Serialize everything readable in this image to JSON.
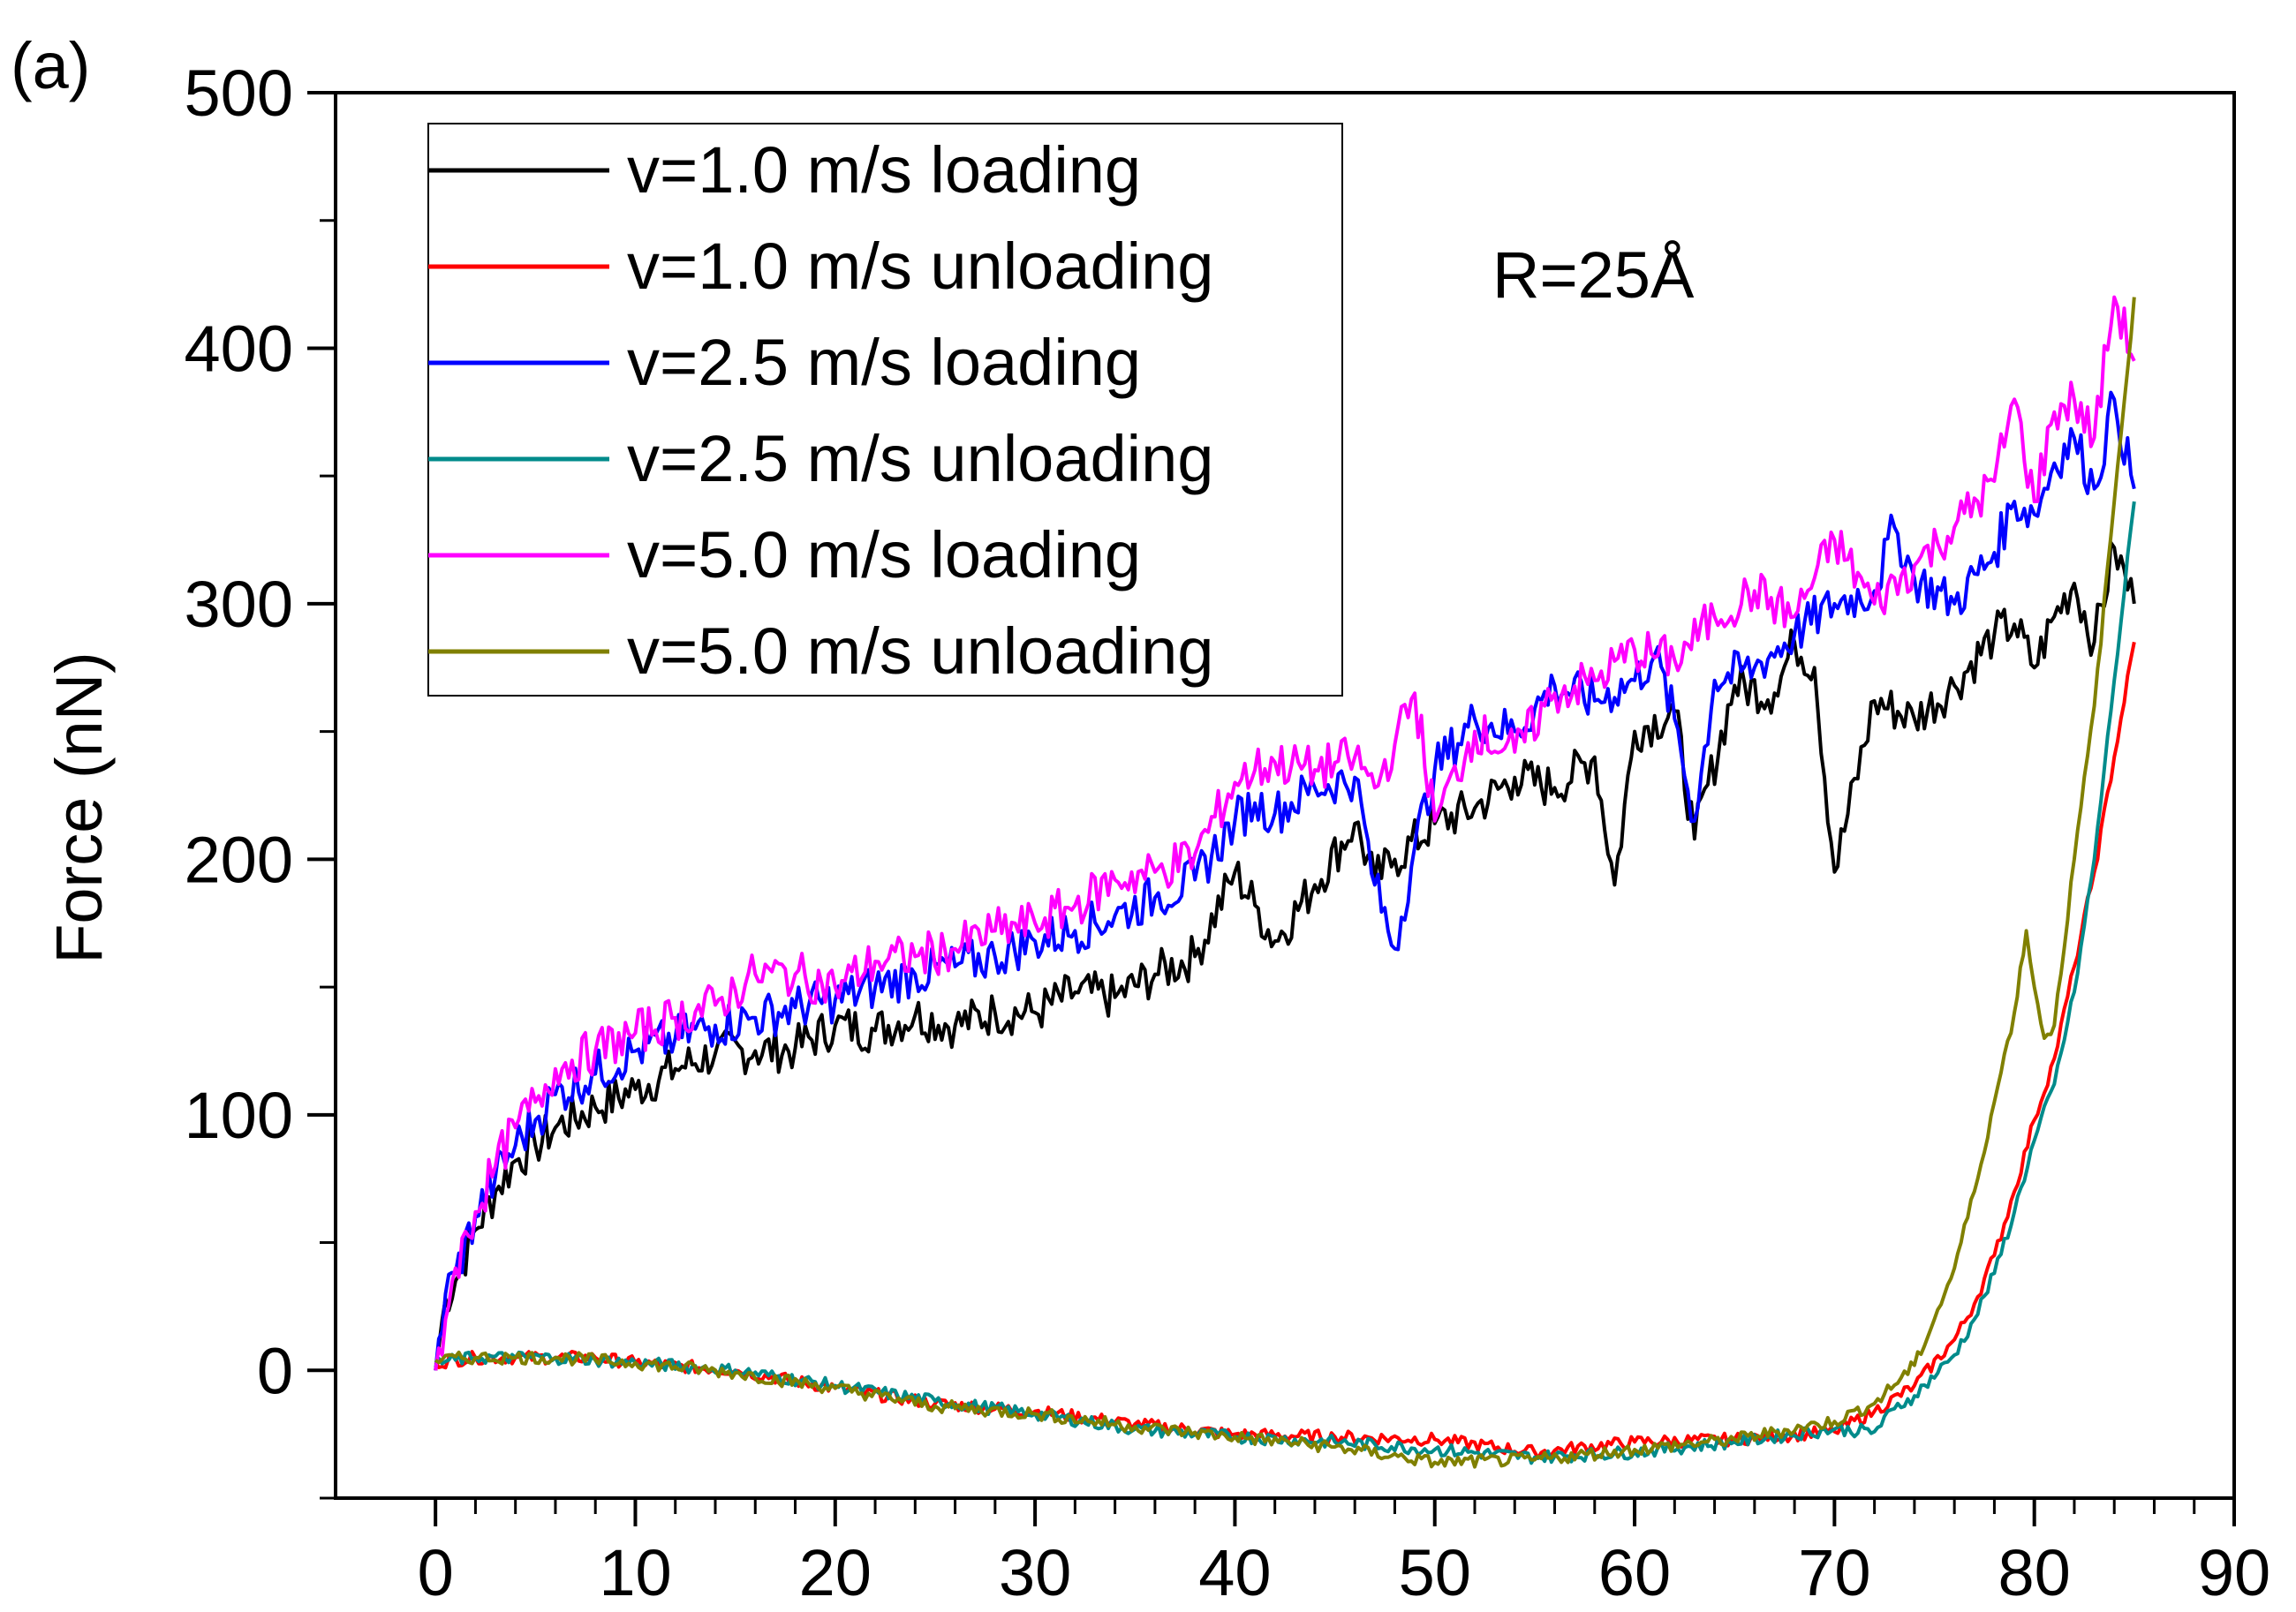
{
  "chart_data": {
    "type": "line",
    "panel_label": "(a)",
    "ylabel": "Force (nN)",
    "xlabel": "",
    "xlim": [
      -5,
      90
    ],
    "ylim": [
      -50,
      500
    ],
    "x_ticks": [
      0,
      10,
      20,
      30,
      40,
      50,
      60,
      70,
      80,
      90
    ],
    "x_tick_labels": [
      "0",
      "10",
      "20",
      "30",
      "40",
      "50",
      "60",
      "70",
      "80",
      "90"
    ],
    "y_ticks": [
      0,
      100,
      200,
      300,
      400,
      500
    ],
    "y_tick_labels": [
      "0",
      "100",
      "200",
      "300",
      "400",
      "500"
    ],
    "annotation": "R=25Å",
    "legend_position": "top-left",
    "series": [
      {
        "name": "v=1.0 m/s loading",
        "color": "#000000",
        "x": [
          0,
          0.5,
          1,
          2,
          3,
          4,
          5,
          6,
          8,
          10,
          12,
          14,
          16,
          18,
          20,
          22,
          24,
          26,
          28,
          30,
          32,
          34,
          36,
          38,
          40,
          41,
          42,
          44,
          46,
          47,
          48,
          50,
          52,
          54,
          56,
          58,
          59,
          60,
          62,
          63,
          65,
          67,
          68,
          69,
          70,
          72,
          74,
          76,
          78,
          79,
          80,
          81,
          82,
          83,
          84,
          85
        ],
        "y": [
          0,
          28,
          35,
          55,
          70,
          82,
          88,
          95,
          103,
          110,
          118,
          124,
          125,
          126,
          135,
          133,
          139,
          135,
          140,
          140,
          148,
          146,
          155,
          162,
          195,
          182,
          168,
          190,
          214,
          192,
          200,
          214,
          220,
          232,
          228,
          240,
          190,
          250,
          258,
          208,
          268,
          265,
          285,
          275,
          195,
          262,
          255,
          268,
          288,
          292,
          275,
          295,
          308,
          285,
          322,
          300
        ]
      },
      {
        "name": "v=1.0 m/s unloading",
        "color": "#ff0000",
        "x": [
          0,
          2,
          4,
          6,
          8,
          10,
          15,
          20,
          25,
          30,
          35,
          40,
          45,
          50,
          55,
          60,
          65,
          70,
          72,
          74,
          76,
          77,
          78,
          79,
          80,
          81,
          82,
          83,
          84,
          85
        ],
        "y": [
          3,
          5,
          5,
          5,
          5,
          3,
          0,
          -7,
          -13,
          -16,
          -21,
          -25,
          -26,
          -27,
          -32,
          -28,
          -27,
          -24,
          -16,
          -6,
          12,
          26,
          45,
          70,
          98,
          122,
          158,
          195,
          240,
          285
        ]
      },
      {
        "name": "v=2.5 m/s loading",
        "color": "#0000ff",
        "x": [
          0,
          0.5,
          1,
          2,
          3,
          4,
          5,
          6,
          8,
          10,
          12,
          14,
          16,
          18,
          20,
          22,
          24,
          26,
          28,
          30,
          32,
          34,
          36,
          38,
          40,
          41,
          42,
          44,
          46,
          47,
          48,
          49,
          50,
          52,
          54,
          56,
          58,
          60,
          61,
          62,
          63,
          64,
          66,
          68,
          70,
          72,
          73,
          74,
          76,
          78,
          79,
          80,
          81,
          82,
          83,
          84,
          85
        ],
        "y": [
          0,
          30,
          38,
          60,
          76,
          88,
          98,
          108,
          116,
          125,
          130,
          135,
          138,
          142,
          145,
          150,
          155,
          158,
          162,
          168,
          172,
          178,
          185,
          192,
          215,
          222,
          218,
          228,
          232,
          190,
          165,
          205,
          235,
          255,
          250,
          268,
          262,
          270,
          280,
          255,
          215,
          270,
          275,
          288,
          300,
          305,
          330,
          310,
          300,
          320,
          340,
          335,
          355,
          365,
          345,
          380,
          345
        ]
      },
      {
        "name": "v=2.5 m/s unloading",
        "color": "#008b8b",
        "x": [
          0,
          2,
          4,
          6,
          8,
          10,
          15,
          20,
          25,
          30,
          35,
          40,
          45,
          50,
          55,
          60,
          65,
          70,
          72,
          73,
          74,
          76,
          77,
          78,
          79,
          80,
          81,
          82,
          83,
          84,
          85
        ],
        "y": [
          3,
          5,
          5,
          5,
          4,
          3,
          0,
          -6,
          -12,
          -17,
          -23,
          -26,
          -28,
          -31,
          -34,
          -32,
          -28,
          -23,
          -24,
          -15,
          -10,
          6,
          20,
          38,
          62,
          90,
          112,
          148,
          200,
          270,
          340
        ]
      },
      {
        "name": "v=5.0 m/s loading",
        "color": "#ff00ff",
        "x": [
          0,
          0.5,
          1,
          2,
          3,
          4,
          5,
          6,
          8,
          10,
          12,
          14,
          16,
          18,
          20,
          22,
          24,
          26,
          28,
          30,
          32,
          34,
          36,
          38,
          40,
          41,
          42,
          44,
          46,
          47,
          48,
          49,
          50,
          52,
          54,
          56,
          58,
          60,
          62,
          64,
          66,
          68,
          70,
          72,
          74,
          76,
          78,
          79,
          80,
          81,
          82,
          83,
          84,
          85
        ],
        "y": [
          0,
          20,
          40,
          62,
          80,
          95,
          105,
          118,
          125,
          132,
          138,
          143,
          155,
          155,
          150,
          160,
          162,
          165,
          172,
          175,
          182,
          192,
          195,
          202,
          230,
          235,
          238,
          235,
          240,
          228,
          245,
          265,
          215,
          250,
          242,
          265,
          270,
          282,
          278,
          295,
          305,
          295,
          325,
          300,
          315,
          330,
          348,
          380,
          340,
          375,
          380,
          365,
          420,
          395
        ]
      },
      {
        "name": "v=5.0 m/s unloading",
        "color": "#808000",
        "x": [
          0,
          2,
          4,
          6,
          8,
          10,
          15,
          20,
          25,
          30,
          35,
          40,
          45,
          50,
          55,
          60,
          65,
          70,
          72,
          74,
          75,
          76,
          77,
          78,
          79,
          79.6,
          80,
          80.5,
          81,
          82,
          83,
          84,
          85
        ],
        "y": [
          4,
          5,
          5,
          5,
          4,
          3,
          -1,
          -7,
          -14,
          -17,
          -22,
          -26,
          -30,
          -36,
          -35,
          -31,
          -27,
          -20,
          -13,
          2,
          20,
          40,
          70,
          105,
          140,
          172,
          150,
          130,
          135,
          200,
          260,
          340,
          420
        ]
      }
    ]
  }
}
